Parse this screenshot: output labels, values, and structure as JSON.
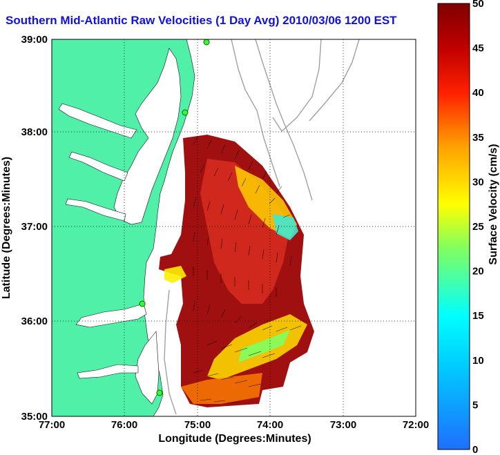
{
  "title": "Southern Mid-Atlantic Raw Velocities (1 Day Avg) 2010/03/06 1200 EST",
  "axes": {
    "xlabel": "Longitude (Degrees:Minutes)",
    "ylabel": "Latitude (Degrees:Minutes)",
    "xticks": [
      "77:00",
      "76:00",
      "75:00",
      "74:00",
      "73:00",
      "72:00"
    ],
    "yticks": [
      "39:00",
      "38:00",
      "37:00",
      "36:00",
      "35:00"
    ],
    "grid": "dotted"
  },
  "colorbar": {
    "label": "Surface Velocity (cm/s)",
    "ticks": [
      "50",
      "45",
      "40",
      "35",
      "30",
      "25",
      "20",
      "15",
      "10",
      "5",
      "0"
    ],
    "range": [
      0,
      50
    ],
    "colors": {
      "low": "#1f6fff",
      "mid_low": "#00ffff",
      "mid": "#ffff00",
      "mid_high": "#ff6600",
      "high": "#800000"
    }
  },
  "colors": {
    "land": "#50f0a8",
    "contour": "#a0a0a0",
    "title": "#1010e0",
    "station": "#33ff33",
    "vectors": "#000000"
  }
}
